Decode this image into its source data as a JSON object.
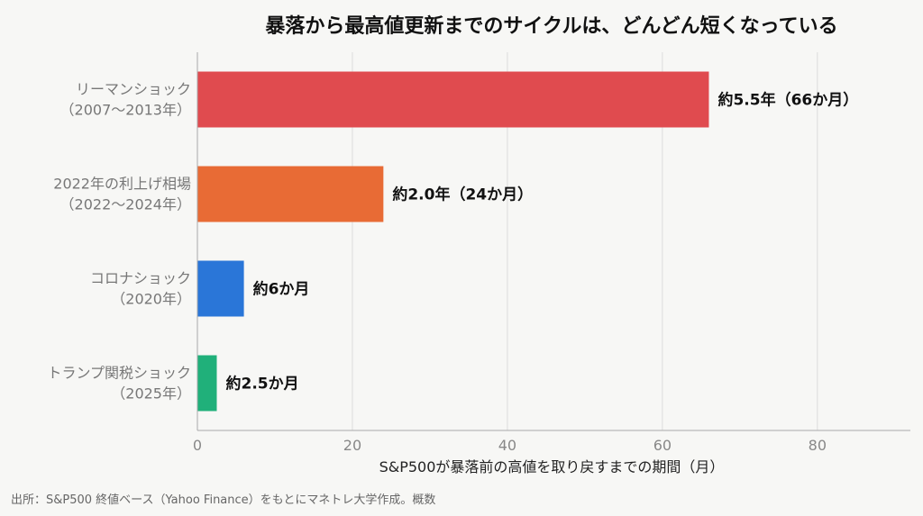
{
  "chart_data": {
    "type": "bar",
    "orientation": "horizontal",
    "title": "暴落から最高値更新までのサイクルは、どんどん短くなっている",
    "categories": [
      [
        "リーマンショック",
        "（2007〜2013年）"
      ],
      [
        "2022年の利上げ相場",
        "（2022〜2024年）"
      ],
      [
        "コロナショック",
        "（2020年）"
      ],
      [
        "トランプ関税ショック",
        "（2025年）"
      ]
    ],
    "values": [
      66,
      24,
      6,
      2.5
    ],
    "data_labels": [
      "約5.5年（66か月）",
      "約2.0年（24か月）",
      "約6か月",
      "約2.5か月"
    ],
    "colors": [
      "#e04b4f",
      "#e86b35",
      "#2a76d8",
      "#20b07a"
    ],
    "xlabel": "S&P500が暴落前の高値を取り戻すまでの期間（月）",
    "xlim": [
      0,
      92
    ],
    "xticks": [
      0,
      20,
      40,
      60,
      80
    ],
    "grid": true
  },
  "source_note": "出所：S&P500 終値ベース（Yahoo Finance）をもとにマネトレ大学作成。概数"
}
